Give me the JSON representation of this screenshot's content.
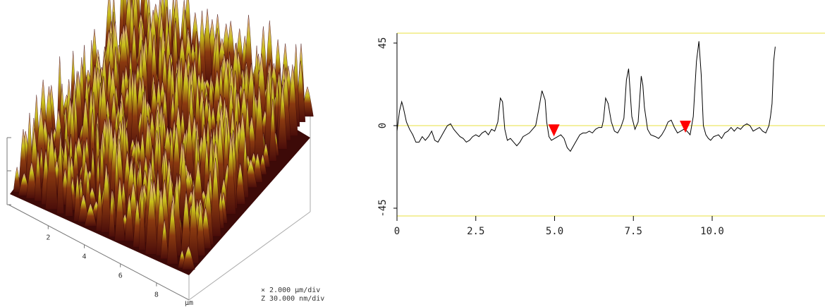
{
  "chart_data": [
    {
      "type": "surface",
      "x_ticks": [
        "2",
        "4",
        "6",
        "8"
      ],
      "x_unit": "μm",
      "scale": {
        "x": "× 2.000 μm/div",
        "z": "Z 30.000 nm/div"
      },
      "colors": {
        "low": "#4a0d0a",
        "mid": "#c8c01a",
        "high": "#e8a8a8"
      }
    },
    {
      "type": "line",
      "xlim": [
        0,
        12
      ],
      "ylim": [
        -50,
        50
      ],
      "x_ticks": [
        0,
        2.5,
        5.0,
        7.5,
        10.0
      ],
      "x_tick_labels": [
        "0",
        "2.5",
        "5.0",
        "7.5",
        "10.0"
      ],
      "y_ticks": [
        45,
        0,
        -45
      ],
      "y_tick_labels": [
        "45",
        "0",
        "-45"
      ],
      "grid": false,
      "markers": [
        {
          "x": 4.98,
          "y": -2,
          "color": "#ff0000"
        },
        {
          "x": 9.15,
          "y": 0,
          "color": "#ff0000"
        }
      ],
      "series": [
        {
          "color": "#000000",
          "x": [
            0,
            0.08,
            0.15,
            0.2,
            0.3,
            0.4,
            0.5,
            0.6,
            0.7,
            0.8,
            0.9,
            1.0,
            1.1,
            1.2,
            1.3,
            1.4,
            1.5,
            1.6,
            1.7,
            1.8,
            1.9,
            2.0,
            2.1,
            2.2,
            2.3,
            2.4,
            2.5,
            2.6,
            2.7,
            2.8,
            2.9,
            3.0,
            3.1,
            3.2,
            3.28,
            3.35,
            3.42,
            3.5,
            3.6,
            3.7,
            3.8,
            3.9,
            4.0,
            4.1,
            4.2,
            4.3,
            4.4,
            4.5,
            4.6,
            4.7,
            4.75,
            4.82,
            4.9,
            5.0,
            5.1,
            5.2,
            5.3,
            5.4,
            5.5,
            5.6,
            5.7,
            5.8,
            5.9,
            6.0,
            6.1,
            6.2,
            6.3,
            6.4,
            6.5,
            6.55,
            6.62,
            6.7,
            6.8,
            6.9,
            7.0,
            7.1,
            7.2,
            7.28,
            7.35,
            7.45,
            7.55,
            7.65,
            7.75,
            7.8,
            7.85,
            7.95,
            8.05,
            8.2,
            8.3,
            8.4,
            8.5,
            8.6,
            8.7,
            8.8,
            8.9,
            9.0,
            9.1,
            9.2,
            9.3,
            9.4,
            9.5,
            9.58,
            9.65,
            9.72,
            9.8,
            9.88,
            9.95,
            10.05,
            10.2,
            10.3,
            10.4,
            10.5,
            10.6,
            10.7,
            10.8,
            10.9,
            11.0,
            11.1,
            11.2,
            11.3,
            11.4,
            11.5,
            11.6,
            11.7,
            11.8,
            11.85,
            11.9,
            11.95,
            12.0
          ],
          "y": [
            -3,
            8,
            13,
            10,
            2,
            -2,
            -5,
            -9,
            -9,
            -6,
            -8,
            -6,
            -3,
            -8,
            -9,
            -6,
            -3,
            0,
            1,
            -2,
            -4,
            -6,
            -7,
            -9,
            -8,
            -6,
            -5,
            -6,
            -4,
            -3,
            -5,
            -2,
            -3,
            2,
            15,
            13,
            -2,
            -8,
            -7,
            -9,
            -11,
            -9,
            -6,
            -5,
            -4,
            -2,
            0,
            9,
            19,
            14,
            2,
            -6,
            -8,
            -7,
            -6,
            -5,
            -7,
            -12,
            -14,
            -11,
            -8,
            -5,
            -4,
            -4,
            -3,
            -4,
            -2,
            -1,
            -1,
            3,
            15,
            12,
            2,
            -3,
            -4,
            -1,
            4,
            25,
            31,
            5,
            -2,
            2,
            27,
            22,
            10,
            -2,
            -5,
            -6,
            -7,
            -5,
            -2,
            2,
            3,
            -1,
            -4,
            -3,
            -2,
            -3,
            -5,
            5,
            35,
            46,
            28,
            0,
            -5,
            -7,
            -8,
            -6,
            -5,
            -7,
            -4,
            -3,
            -1,
            -3,
            -1,
            -2,
            0,
            1,
            0,
            -3,
            -2,
            -1,
            -3,
            -4,
            0,
            5,
            12,
            35,
            43
          ]
        }
      ]
    }
  ]
}
